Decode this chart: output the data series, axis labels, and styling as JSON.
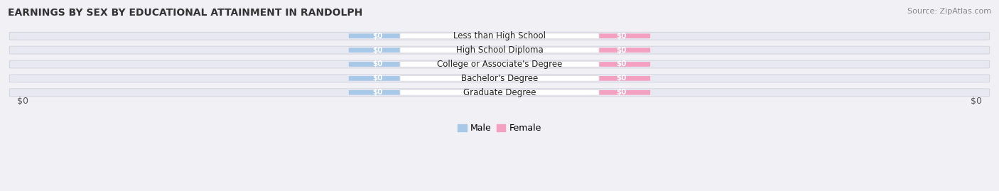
{
  "title": "EARNINGS BY SEX BY EDUCATIONAL ATTAINMENT IN RANDOLPH",
  "source": "Source: ZipAtlas.com",
  "categories": [
    "Less than High School",
    "High School Diploma",
    "College or Associate's Degree",
    "Bachelor's Degree",
    "Graduate Degree"
  ],
  "male_color": "#a8c8e8",
  "female_color": "#f4a0c0",
  "row_bg_color": "#e8e8f0",
  "row_bg_edge_color": "#d0d0de",
  "center_label_bg": "#ffffff",
  "center_label_edge": "#dddddd",
  "xlabel_left": "$0",
  "xlabel_right": "$0",
  "bar_value_label": "$0",
  "legend_male": "Male",
  "legend_female": "Female",
  "title_fontsize": 10,
  "source_fontsize": 8,
  "value_fontsize": 7.5,
  "cat_fontsize": 8.5,
  "tick_fontsize": 9,
  "legend_fontsize": 9,
  "bg_color": "#f0f0f5"
}
